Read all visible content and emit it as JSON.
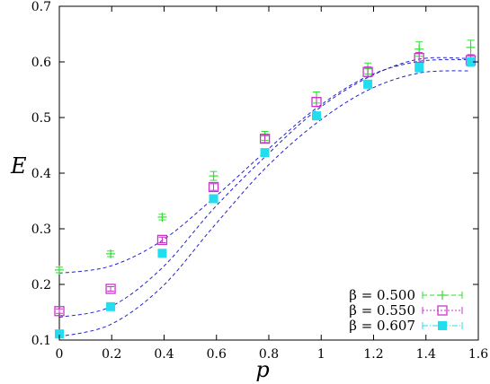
{
  "chart_data": {
    "type": "scatter",
    "xlabel": "p",
    "ylabel": "E",
    "xlim": [
      0,
      1.6
    ],
    "ylim": [
      0.1,
      0.7
    ],
    "xticks": [
      "0",
      "0.2",
      "0.4",
      "0.6",
      "0.8",
      "1",
      "1.2",
      "1.4",
      "1.6"
    ],
    "yticks": [
      "0.1",
      "0.2",
      "0.3",
      "0.4",
      "0.5",
      "0.6",
      "0.7"
    ],
    "grid": false,
    "legend_position": "bottom-right",
    "x": [
      0,
      0.196,
      0.393,
      0.589,
      0.785,
      0.982,
      1.178,
      1.374,
      1.571
    ],
    "series": [
      {
        "name": "β = 0.500",
        "marker": "plus",
        "color": "#33dd33",
        "values": [
          0.226,
          0.255,
          0.321,
          0.395,
          0.467,
          0.536,
          0.588,
          0.623,
          0.626
        ],
        "errors": [
          0.005,
          0.005,
          0.005,
          0.008,
          0.008,
          0.01,
          0.01,
          0.013,
          0.013
        ],
        "fit": [
          0.22,
          0.233,
          0.279,
          0.355,
          0.438,
          0.517,
          0.574,
          0.601,
          0.604
        ]
      },
      {
        "name": "β = 0.550",
        "marker": "open-square",
        "color": "#cc33cc",
        "values": [
          0.152,
          0.192,
          0.28,
          0.375,
          0.462,
          0.528,
          0.582,
          0.607,
          0.603
        ],
        "errors": [
          0.004,
          0.004,
          0.005,
          0.006,
          0.007,
          0.008,
          0.009,
          0.01,
          0.01
        ],
        "fit": [
          0.141,
          0.16,
          0.23,
          0.336,
          0.429,
          0.513,
          0.572,
          0.605,
          0.606
        ]
      },
      {
        "name": "β = 0.607",
        "marker": "filled-square",
        "color": "#22ddee",
        "values": [
          0.111,
          0.16,
          0.256,
          0.354,
          0.437,
          0.503,
          0.56,
          0.59,
          0.6
        ],
        "errors": [
          0.003,
          0.003,
          0.004,
          0.005,
          0.005,
          0.006,
          0.007,
          0.008,
          0.008
        ],
        "fit": [
          0.106,
          0.128,
          0.196,
          0.304,
          0.408,
          0.49,
          0.549,
          0.58,
          0.584
        ]
      }
    ],
    "fit_color": "#2222cc"
  }
}
